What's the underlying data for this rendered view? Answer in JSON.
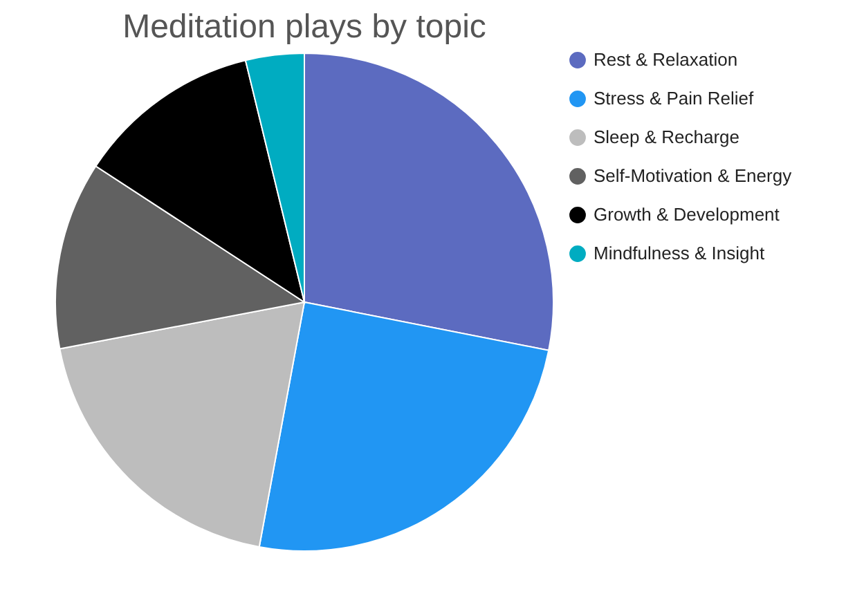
{
  "chart_data": {
    "type": "pie",
    "title": "Meditation plays by topic",
    "categories": [
      "Rest & Relaxation",
      "Stress & Pain Relief",
      "Sleep & Recharge",
      "Self-Motivation & Energy",
      "Growth & Development",
      "Mindfulness & Insight"
    ],
    "values": [
      28.1,
      24.8,
      19.1,
      12.2,
      12.0,
      3.8
    ],
    "colors": [
      "#5c6bc0",
      "#2196f3",
      "#bdbdbd",
      "#616161",
      "#000000",
      "#00acc1"
    ],
    "legend": "right"
  }
}
